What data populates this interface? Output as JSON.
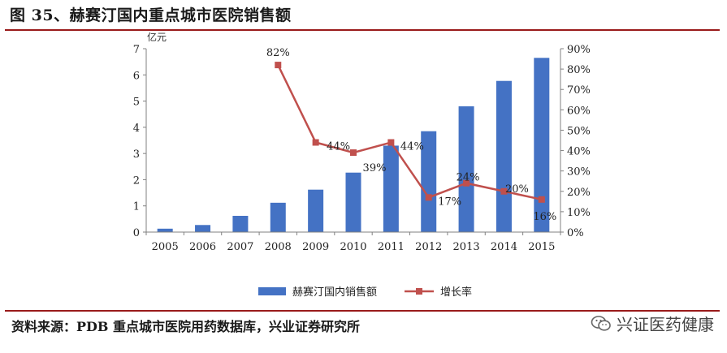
{
  "figure": {
    "title": "图 35、赫赛汀国内重点城市医院销售额",
    "source": "资料来源：PDB 重点城市医院用药数据库，兴业证券研究所",
    "watermark": "兴证医药健康"
  },
  "colors": {
    "bar": "#4472C4",
    "line": "#C0504D",
    "axis": "#808080",
    "title_rule": "#9a1b1b"
  },
  "icons": {
    "watermark": "wechat-logo-icon"
  },
  "chart_data": {
    "type": "bar",
    "categories": [
      "2005",
      "2006",
      "2007",
      "2008",
      "2009",
      "2010",
      "2011",
      "2012",
      "2013",
      "2014",
      "2015"
    ],
    "left_axis_unit": "亿元",
    "ylim": [
      0,
      7
    ],
    "yticks": [
      "0",
      "1",
      "2",
      "3",
      "4",
      "5",
      "6",
      "7"
    ],
    "y2lim": [
      0,
      90
    ],
    "y2ticks": [
      "0%",
      "10%",
      "20%",
      "30%",
      "40%",
      "50%",
      "60%",
      "70%",
      "80%",
      "90%"
    ],
    "grid": false,
    "legend_position": "bottom",
    "series": [
      {
        "name": "赫赛汀国内销售额",
        "type": "bar",
        "axis": "left",
        "values": [
          0.13,
          0.27,
          0.62,
          1.12,
          1.62,
          2.27,
          3.3,
          3.85,
          4.8,
          5.77,
          6.65
        ]
      },
      {
        "name": "增长率",
        "type": "line",
        "axis": "right",
        "values": [
          null,
          null,
          null,
          82,
          44,
          39,
          44,
          17,
          24,
          20,
          16
        ],
        "labels": [
          null,
          null,
          null,
          "82%",
          "44%",
          "39%",
          "44%",
          "17%",
          "24%",
          "20%",
          "16%"
        ]
      }
    ]
  }
}
